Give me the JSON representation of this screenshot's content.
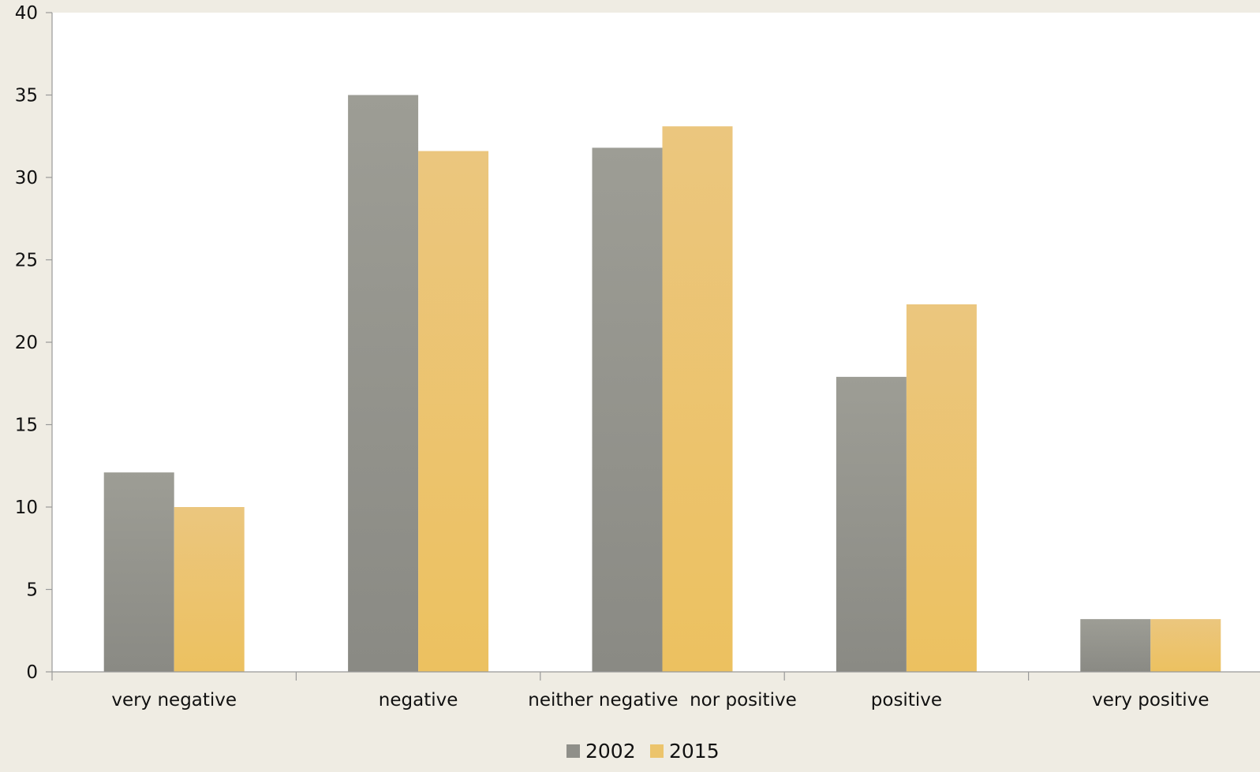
{
  "chart_data": {
    "type": "bar",
    "title": "",
    "xlabel": "",
    "ylabel": "",
    "categories": [
      "very negative",
      "negative",
      "neither negative  nor positive",
      "positive",
      "very positive"
    ],
    "series": [
      {
        "name": "2002",
        "values": [
          12.1,
          35.0,
          31.8,
          17.9,
          3.2
        ],
        "color": "#90908a"
      },
      {
        "name": "2015",
        "values": [
          10.0,
          31.6,
          33.1,
          22.3,
          3.2
        ],
        "color": "#ecc36a"
      }
    ],
    "ylim": [
      0,
      40
    ],
    "yticks": [
      "0",
      "5",
      "10",
      "15",
      "20",
      "25",
      "30",
      "35",
      "40"
    ],
    "grid": false,
    "legend_position": "bottom-center",
    "colors": {
      "background": "#efece3",
      "plot_background": "#ffffff",
      "axis": "#999999"
    }
  }
}
